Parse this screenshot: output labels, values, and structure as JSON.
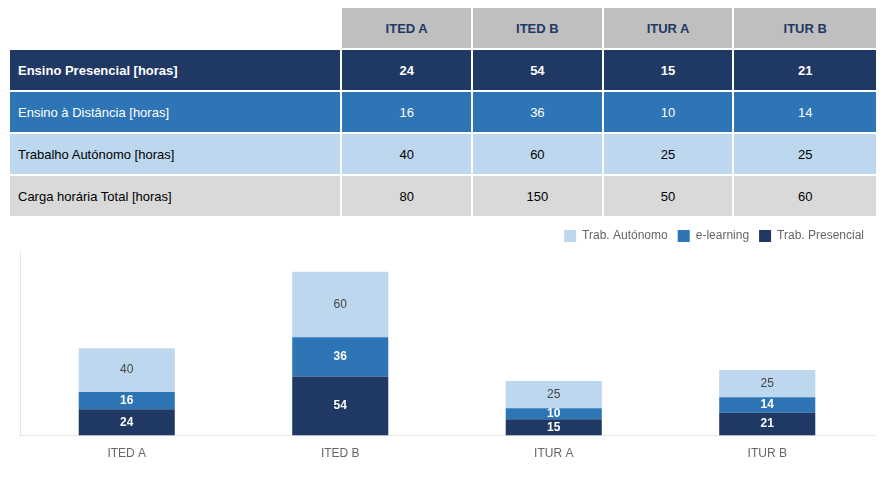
{
  "chart_data": {
    "type": "bar",
    "stacked": true,
    "categories": [
      "ITED A",
      "ITED B",
      "ITUR A",
      "ITUR B"
    ],
    "series": [
      {
        "name": "Trab. Presencial",
        "color": "#1f3864",
        "values": [
          24,
          54,
          15,
          21
        ]
      },
      {
        "name": "e-learning",
        "color": "#2e75b6",
        "values": [
          16,
          36,
          10,
          14
        ]
      },
      {
        "name": "Trab. Autónomo",
        "color": "#bdd7ee",
        "values": [
          40,
          60,
          25,
          25
        ]
      }
    ],
    "ylim": [
      0,
      168
    ],
    "grid": false,
    "legend": "upper right",
    "data_labels": true,
    "tick_labels": "x",
    "table": {
      "columns": [
        "ITED A",
        "ITED B",
        "ITUR A",
        "ITUR B"
      ],
      "rows": [
        {
          "label": "Ensino Presencial [horas]",
          "color": "#1f3864",
          "values": [
            24,
            54,
            15,
            21
          ]
        },
        {
          "label": "Ensino à Distância [horas]",
          "color": "#2e75b6",
          "values": [
            16,
            36,
            10,
            14
          ]
        },
        {
          "label": "Trabalho Autónomo [horas]",
          "color": "#bdd7ee",
          "values": [
            40,
            60,
            25,
            25
          ]
        },
        {
          "label": "Carga horária Total [horas]",
          "color": "#d9d9d9",
          "values": [
            80,
            150,
            50,
            60
          ]
        }
      ]
    }
  }
}
